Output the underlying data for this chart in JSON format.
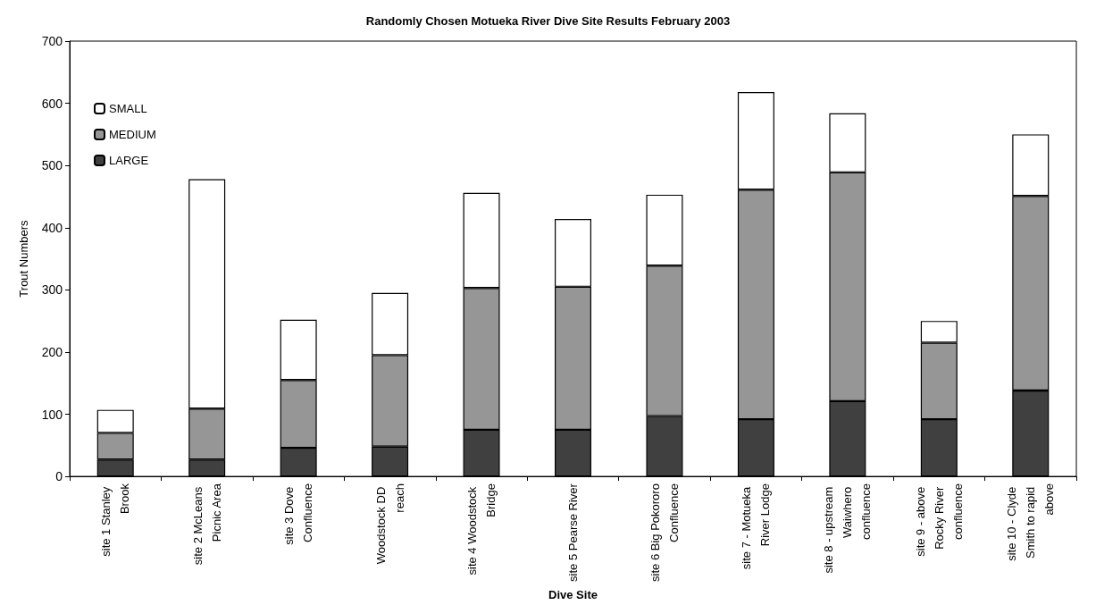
{
  "chart_data": {
    "type": "bar",
    "title": "Randomly Chosen Motueka River Dive Site Results February 2003",
    "xlabel": "Dive Site",
    "ylabel": "Trout Numbers",
    "categories": [
      "site 1 Stanley Brook",
      "site 2 McLeans Picnic Area",
      "site 3 Dove Confluence",
      "Woodstock DD reach",
      "site 4 Woodstock Bridge",
      "site 5 Pearse River",
      "site 6 Big Pokororo Confluence",
      "site 7 - Motueka River Lodge",
      "site 8 - upstream Waiwhero confluence",
      "site 9 - above Rocky River confluence",
      "site 10 - Clyde Smith to rapid above"
    ],
    "series": [
      {
        "name": "LARGE",
        "color": "#404040",
        "values": [
          27,
          27,
          46,
          48,
          75,
          75,
          97,
          92,
          121,
          92,
          138
        ]
      },
      {
        "name": "MEDIUM",
        "color": "#969696",
        "values": [
          43,
          82,
          109,
          147,
          228,
          230,
          242,
          369,
          368,
          123,
          313
        ]
      },
      {
        "name": "SMALL",
        "color": "#ffffff",
        "values": [
          37,
          369,
          97,
          100,
          153,
          109,
          114,
          157,
          95,
          35,
          99
        ]
      }
    ],
    "stacked": true,
    "ylim": [
      0,
      700
    ],
    "yticks": [
      0,
      100,
      200,
      300,
      400,
      500,
      600,
      700
    ],
    "grid": false,
    "legend": "top left"
  }
}
